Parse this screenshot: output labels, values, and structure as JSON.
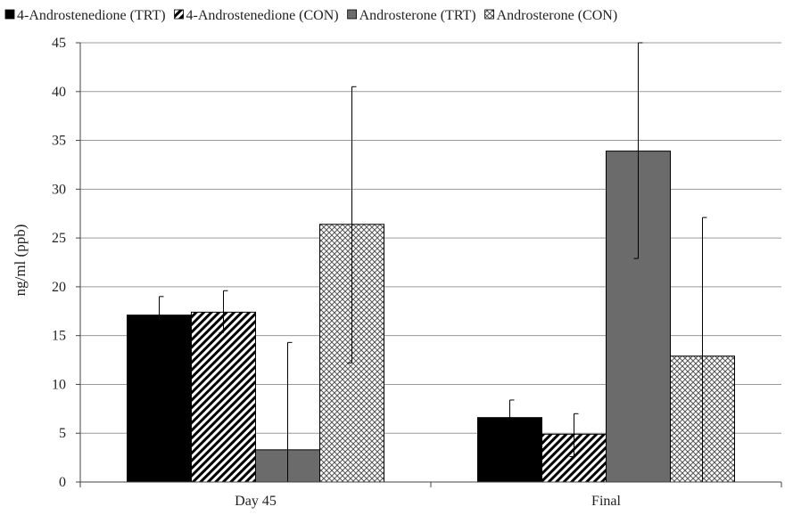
{
  "chart_data": {
    "type": "bar",
    "title": "",
    "xlabel": "",
    "ylabel": "ng/ml (ppb)",
    "ylim": [
      0,
      45
    ],
    "yticks": [
      0,
      5,
      10,
      15,
      20,
      25,
      30,
      35,
      40,
      45
    ],
    "grid": "horizontal",
    "legend_position": "top",
    "categories": [
      "Day 45",
      "Final"
    ],
    "series": [
      {
        "name": "4-Androstenedione (TRT)",
        "values": [
          17.1,
          6.6
        ],
        "err_low": [
          15.2,
          4.9
        ],
        "err_high": [
          19.0,
          8.4
        ],
        "fill": "solid",
        "color": "#000000"
      },
      {
        "name": "4-Androstenedione (CON)",
        "values": [
          17.4,
          4.9
        ],
        "err_low": [
          15.3,
          2.6
        ],
        "err_high": [
          19.6,
          7.0
        ],
        "fill": "diagonal-stripes",
        "color": "#000000"
      },
      {
        "name": "Androsterone (TRT)",
        "values": [
          3.3,
          33.9
        ],
        "err_low": [
          0.0,
          22.9
        ],
        "err_high": [
          14.3,
          45.0
        ],
        "fill": "solid",
        "color": "#6b6b6b"
      },
      {
        "name": "Androsterone (CON)",
        "values": [
          26.4,
          12.9
        ],
        "err_low": [
          12.2,
          0.0
        ],
        "err_high": [
          40.5,
          27.1
        ],
        "fill": "crosshatch",
        "color": "#555555"
      }
    ]
  }
}
